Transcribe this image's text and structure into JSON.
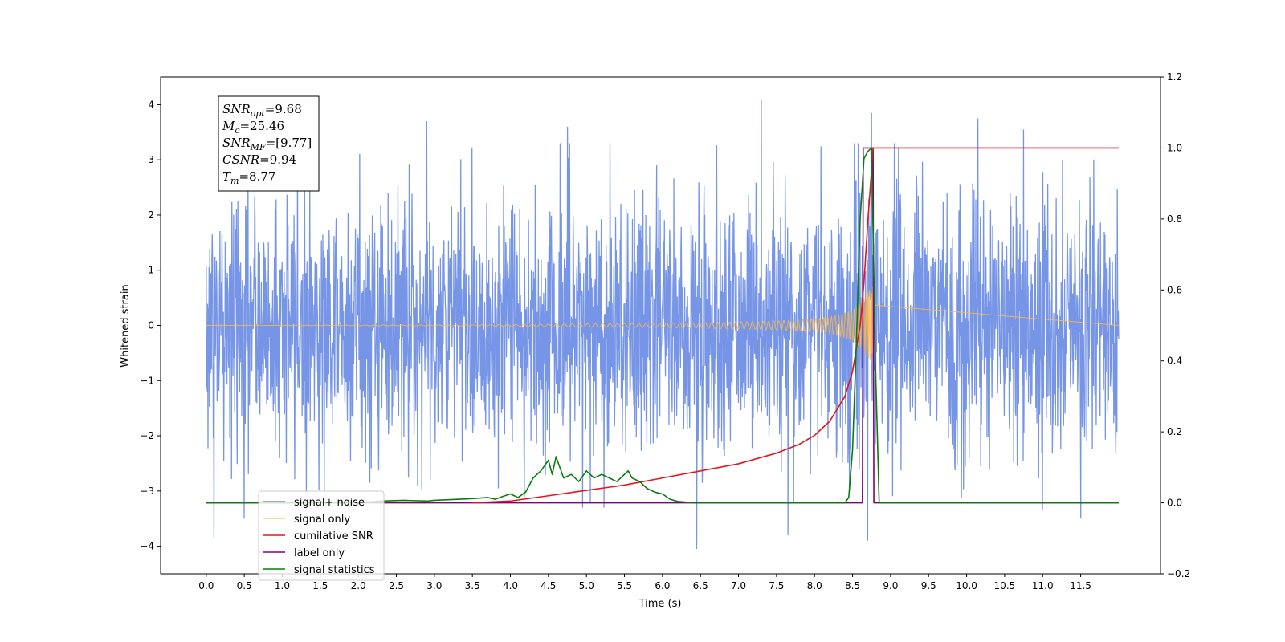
{
  "chart_data": {
    "type": "line",
    "xlabel": "Time (s)",
    "ylabel_left": "Whitened strain",
    "ylabel_right": "",
    "xlim": [
      -0.6,
      12.55
    ],
    "ylim_left": [
      -4.5,
      4.5
    ],
    "ylim_right": [
      -0.2,
      1.2
    ],
    "x_ticks": [
      0.0,
      0.5,
      1.0,
      1.5,
      2.0,
      2.5,
      3.0,
      3.5,
      4.0,
      4.5,
      5.0,
      5.5,
      6.0,
      6.5,
      7.0,
      7.5,
      8.0,
      8.5,
      9.0,
      9.5,
      10.0,
      10.5,
      11.0,
      11.5
    ],
    "x_tick_labels": [
      "0.0",
      "0.5",
      "1.0",
      "1.5",
      "2.0",
      "2.5",
      "3.0",
      "3.5",
      "4.0",
      "4.5",
      "5.0",
      "5.5",
      "6.0",
      "6.5",
      "7.0",
      "7.5",
      "8.0",
      "8.5",
      "9.0",
      "9.5",
      "10.0",
      "10.5",
      "11.0",
      "11.5"
    ],
    "y_left_ticks": [
      4,
      3,
      2,
      1,
      0,
      -1,
      -2,
      -3,
      -4
    ],
    "y_left_tick_labels": [
      "4",
      "3",
      "2",
      "1",
      "0",
      "−1",
      "−2",
      "−3",
      "−4"
    ],
    "y_right_ticks": [
      1.2,
      1.0,
      0.8,
      0.6,
      0.4,
      0.2,
      0.0,
      -0.2
    ],
    "y_right_tick_labels": [
      "1.2",
      "1.0",
      "0.8",
      "0.6",
      "0.4",
      "0.2",
      "0.0",
      "−0.2"
    ],
    "grid": false,
    "legend_position": "lower-left",
    "annotation": [
      {
        "sym": "SNR",
        "sub": "opt",
        "val": "=9.68"
      },
      {
        "sym": "M",
        "sub": "c",
        "val": "=25.46"
      },
      {
        "sym": "SNR",
        "sub": "MF",
        "val": "=[9.77]"
      },
      {
        "sym": "CSNR",
        "sub": "",
        "val": "=9.94"
      },
      {
        "sym": "T",
        "sub": "m",
        "val": "=8.77"
      }
    ],
    "series": [
      {
        "name": "signal+ noise",
        "axis": "left",
        "color": "#6f8fe5",
        "kind": "noise",
        "x_range": [
          0.0,
          12.0
        ],
        "amplitude_envelope": {
          "x": [
            0.0,
            8.2,
            8.7,
            8.77,
            12.0
          ],
          "y": [
            1.15,
            1.15,
            1.5,
            1.15,
            1.15
          ]
        },
        "notable_peaks": [
          {
            "x": 0.1,
            "y": -3.85
          },
          {
            "x": 0.5,
            "y": -3.5
          },
          {
            "x": 1.2,
            "y": 3.55
          },
          {
            "x": 2.9,
            "y": 3.7
          },
          {
            "x": 4.75,
            "y": 3.6
          },
          {
            "x": 5.05,
            "y": -3.2
          },
          {
            "x": 6.45,
            "y": -4.05
          },
          {
            "x": 7.3,
            "y": 4.1
          },
          {
            "x": 7.3,
            "y": -3.4
          },
          {
            "x": 7.65,
            "y": -3.8
          },
          {
            "x": 8.7,
            "y": -3.9
          },
          {
            "x": 8.75,
            "y": 3.85
          },
          {
            "x": 10.15,
            "y": 3.75
          },
          {
            "x": 10.75,
            "y": 3.55
          },
          {
            "x": 11.0,
            "y": -3.35
          },
          {
            "x": 11.5,
            "y": -3.5
          }
        ]
      },
      {
        "name": "signal only",
        "axis": "left",
        "color": "#ffb845",
        "kind": "chirp",
        "t_merger": 8.77,
        "envelope": {
          "x": [
            0.0,
            3.5,
            5.0,
            6.5,
            7.5,
            8.0,
            8.3,
            8.5,
            8.6,
            8.7,
            8.77
          ],
          "y": [
            0.0,
            0.01,
            0.03,
            0.05,
            0.08,
            0.12,
            0.18,
            0.28,
            0.4,
            0.6,
            0.75
          ]
        }
      },
      {
        "name": "cumilative SNR",
        "axis": "right",
        "color": "#e8141c",
        "x": [
          3.5,
          4.0,
          4.5,
          5.0,
          5.5,
          6.0,
          6.5,
          7.0,
          7.5,
          7.8,
          8.0,
          8.2,
          8.4,
          8.5,
          8.6,
          8.65,
          8.7,
          8.75,
          8.77,
          12.0
        ],
        "y": [
          0.0,
          0.005,
          0.02,
          0.035,
          0.05,
          0.07,
          0.09,
          0.11,
          0.14,
          0.165,
          0.19,
          0.23,
          0.3,
          0.37,
          0.5,
          0.62,
          0.79,
          0.94,
          1.0,
          1.0
        ]
      },
      {
        "name": "label only",
        "axis": "right",
        "color": "#800080",
        "x": [
          0.0,
          8.63,
          8.64,
          8.77,
          8.78,
          12.0
        ],
        "y": [
          0.0,
          0.0,
          1.0,
          1.0,
          0.0,
          0.0
        ]
      },
      {
        "name": "signal statistics",
        "axis": "right",
        "color": "#0a7d0a",
        "x": [
          0.0,
          2.0,
          2.3,
          2.6,
          2.9,
          3.0,
          3.3,
          3.5,
          3.7,
          3.8,
          3.9,
          4.0,
          4.1,
          4.2,
          4.3,
          4.4,
          4.5,
          4.55,
          4.6,
          4.7,
          4.8,
          4.9,
          5.0,
          5.1,
          5.2,
          5.3,
          5.4,
          5.5,
          5.55,
          5.6,
          5.7,
          5.8,
          5.9,
          6.0,
          6.1,
          6.2,
          6.4,
          8.4,
          8.45,
          8.5,
          8.55,
          8.6,
          8.65,
          8.7,
          8.75,
          8.8,
          8.85,
          12.0
        ],
        "y": [
          0.0,
          0.0,
          0.005,
          0.007,
          0.005,
          0.007,
          0.01,
          0.012,
          0.015,
          0.01,
          0.018,
          0.025,
          0.015,
          0.03,
          0.07,
          0.09,
          0.12,
          0.08,
          0.13,
          0.07,
          0.08,
          0.06,
          0.09,
          0.07,
          0.08,
          0.07,
          0.06,
          0.08,
          0.09,
          0.07,
          0.06,
          0.04,
          0.03,
          0.025,
          0.01,
          0.004,
          0.0,
          0.0,
          0.015,
          0.15,
          0.45,
          0.8,
          0.97,
          0.99,
          1.0,
          0.4,
          0.0,
          0.0
        ]
      }
    ],
    "legend": [
      {
        "label": "signal+ noise",
        "color": "#6f8fe5"
      },
      {
        "label": "signal only",
        "color": "#ffc966"
      },
      {
        "label": "cumilative SNR",
        "color": "#e8141c"
      },
      {
        "label": "label only",
        "color": "#800080"
      },
      {
        "label": "signal statistics",
        "color": "#0a7d0a"
      }
    ]
  }
}
